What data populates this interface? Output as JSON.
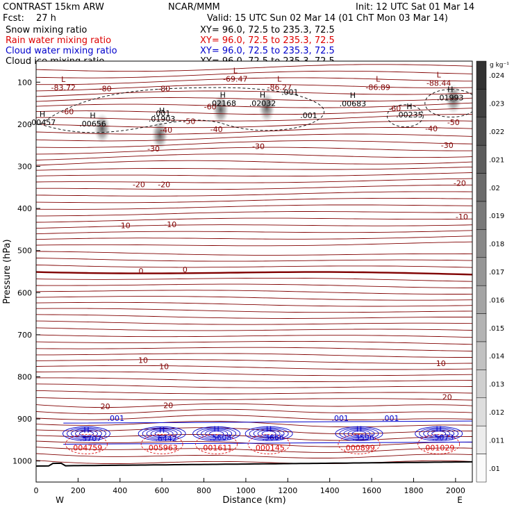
{
  "header": {
    "title_left": "CONTRAST 15km ARW",
    "title_center": "NCAR/MMM",
    "init": "Init: 12 UTC Sat 01 Mar 14",
    "fcst_label": "Fcst:",
    "fcst_value": "27 h",
    "valid": "Valid: 15 UTC Sun 02 Mar 14 (01 ChT Mon 03 Mar 14)"
  },
  "legend": [
    {
      "label": "Snow mixing ratio",
      "xy": "XY=  96.0, 72.5 to 235.3, 72.5",
      "color": "#000000"
    },
    {
      "label": "Rain water mixing ratio",
      "xy": "XY=  96.0, 72.5 to 235.3, 72.5",
      "color": "#dd0000"
    },
    {
      "label": "Cloud water mixing ratio",
      "xy": "XY=  96.0, 72.5 to 235.3, 72.5",
      "color": "#0000cc"
    },
    {
      "label": "Cloud ice mixing ratio",
      "xy": "XY=  96.0, 72.5 to 235.3, 72.5",
      "color": "#000000"
    }
  ],
  "chart_data": {
    "type": "line",
    "xlabel": "Distance (km)",
    "ylabel": "Pressure (hPa)",
    "xlim": [
      0,
      2080
    ],
    "ylim": [
      1050,
      50
    ],
    "x_ticks": [
      0,
      200,
      400,
      600,
      800,
      1000,
      1200,
      1400,
      1600,
      1800,
      2000
    ],
    "y_ticks": [
      100,
      200,
      300,
      400,
      500,
      600,
      700,
      800,
      900,
      1000
    ],
    "x_end_labels": {
      "left": "W",
      "right": "E"
    },
    "temperature_contours": {
      "units": "C",
      "color": "#800000",
      "levels_labeled": [
        {
          "value": "-60",
          "points": [
            [
              150,
              170
            ],
            [
              830,
              158
            ],
            [
              1710,
              162
            ]
          ]
        },
        {
          "value": "-50",
          "points": [
            [
              730,
              193
            ],
            [
              1990,
              195
            ]
          ]
        },
        {
          "value": "-40",
          "points": [
            [
              620,
              213
            ],
            [
              860,
              212
            ],
            [
              1885,
              210
            ]
          ]
        },
        {
          "value": "-30",
          "points": [
            [
              560,
              258
            ],
            [
              1060,
              252
            ],
            [
              1960,
              250
            ]
          ]
        },
        {
          "value": "-20",
          "points": [
            [
              490,
              343
            ],
            [
              610,
              343
            ],
            [
              2020,
              340
            ]
          ]
        },
        {
          "value": "-10",
          "points": [
            [
              420,
              440
            ],
            [
              640,
              438
            ],
            [
              2030,
              420
            ]
          ]
        },
        {
          "value": "0",
          "points": [
            [
              500,
              548
            ],
            [
              710,
              545
            ]
          ]
        },
        {
          "value": "10",
          "points": [
            [
              510,
              760
            ],
            [
              610,
              775
            ],
            [
              1930,
              768
            ]
          ]
        },
        {
          "value": "20",
          "points": [
            [
              330,
              870
            ],
            [
              630,
              868
            ],
            [
              1960,
              848
            ]
          ]
        },
        {
          "value": "-80",
          "points": [
            [
              330,
              115
            ],
            [
              610,
              115
            ]
          ]
        }
      ]
    },
    "cloud_ice_extrema": [
      {
        "type": "H",
        "value": ".00457",
        "x": 30,
        "y": 185
      },
      {
        "type": "H",
        "value": ".00656",
        "x": 270,
        "y": 189
      },
      {
        "type": "H",
        "value": ".01903",
        "x": 600,
        "y": 177
      },
      {
        "type": "H",
        "value": ".02168",
        "x": 890,
        "y": 140
      },
      {
        "type": "H",
        "value": ".02032",
        "x": 1080,
        "y": 140
      },
      {
        "type": "H",
        "value": ".00683",
        "x": 1510,
        "y": 141
      },
      {
        "type": "H",
        "value": ".00235",
        "x": 1780,
        "y": 167
      },
      {
        "type": "H",
        "value": ".01993",
        "x": 1975,
        "y": 127
      }
    ],
    "temperature_extrema": [
      {
        "type": "L",
        "value": "-83.72",
        "x": 130,
        "y": 103
      },
      {
        "type": "L",
        "value": "-69.47",
        "x": 950,
        "y": 82
      },
      {
        "type": "L",
        "value": "-86.27",
        "x": 1160,
        "y": 102
      },
      {
        "type": "L",
        "value": "-86.89",
        "x": 1630,
        "y": 102
      },
      {
        "type": "L",
        "value": "-88.44",
        "x": 1920,
        "y": 92
      }
    ],
    "cloud_ice_contour_label": ".001",
    "cloud_water_extrema": [
      {
        "type": "H",
        "value": ".5707",
        "x": 240,
        "y": 936
      },
      {
        "type": "H",
        "value": ".6442",
        "x": 600,
        "y": 936
      },
      {
        "type": "H",
        "value": ".5608",
        "x": 860,
        "y": 934
      },
      {
        "type": "H",
        "value": ".3666",
        "x": 1110,
        "y": 934
      },
      {
        "type": "H",
        "value": ".3596",
        "x": 1540,
        "y": 934
      },
      {
        "type": "H",
        "value": ".5073",
        "x": 1920,
        "y": 934
      }
    ],
    "cloud_water_contour_label": ".001",
    "rain_water_extrema": [
      {
        "type": "H",
        "value": ".004759",
        "x": 240,
        "y": 955
      },
      {
        "type": "H",
        "value": ".005963",
        "x": 600,
        "y": 955
      },
      {
        "type": "H",
        "value": ".001611",
        "x": 860,
        "y": 955
      },
      {
        "type": "H",
        "value": ".000145",
        "x": 1110,
        "y": 955
      },
      {
        "type": "H",
        "value": ".000899",
        "x": 1540,
        "y": 955
      },
      {
        "type": "H",
        "value": ".001029",
        "x": 1920,
        "y": 955
      }
    ],
    "snow_blobs": [
      {
        "x": 315,
        "p": 210
      },
      {
        "x": 590,
        "p": 225
      },
      {
        "x": 880,
        "p": 165
      },
      {
        "x": 1100,
        "p": 160
      },
      {
        "x": 1990,
        "p": 140
      }
    ],
    "colorbar": {
      "units": "g kg⁻¹",
      "ticks": [
        ".024",
        ".023",
        ".022",
        ".021",
        ".02",
        ".019",
        ".018",
        ".017",
        ".016",
        ".015",
        ".014",
        ".013",
        ".012",
        ".011",
        ".01"
      ]
    }
  }
}
